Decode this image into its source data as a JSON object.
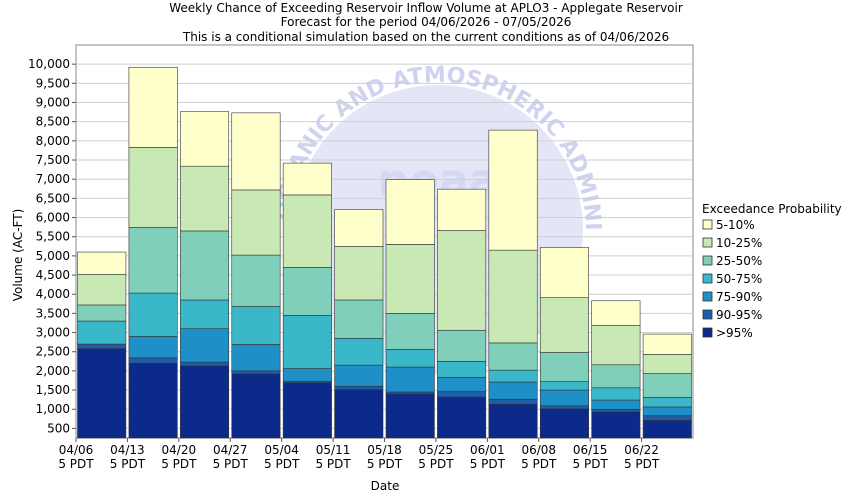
{
  "colors": {
    "background": "#ffffff",
    "plot_background": "#ffffff",
    "watermark": "#dcdff5",
    "bar_outline": "#333333",
    "bands": [
      "#0c2a8a",
      "#1c5ea9",
      "#1e8fc7",
      "#3ab7c8",
      "#7fcfbb",
      "#c8e8b4",
      "#ffffcc"
    ]
  },
  "watermark": {
    "arc_text": "OCEANIC AND ATMOSPHERIC ADMINISTRATION",
    "center_text": "noaa"
  },
  "chart_data": {
    "type": "bar",
    "stacked": true,
    "title": "Weekly Chance of Exceeding Reservoir Inflow Volume at APLO3 - Applegate Reservoir",
    "subtitle_lines": [
      "Forecast for the period 04/06/2026 - 07/05/2026",
      "This is a conditional simulation based on the current conditions as of 04/06/2026"
    ],
    "xlabel": "Date",
    "ylabel": "Volume (AC-FT)",
    "ylim": [
      250,
      10500
    ],
    "yticks": [
      500,
      1000,
      1500,
      2000,
      2500,
      3000,
      3500,
      4000,
      4500,
      5000,
      5500,
      6000,
      6500,
      7000,
      7500,
      8000,
      8500,
      9000,
      9500,
      10000
    ],
    "ytick_labels": [
      "500",
      "1,000",
      "1,500",
      "2,000",
      "2,500",
      "3,000",
      "3,500",
      "4,000",
      "4,500",
      "5,000",
      "5,500",
      "6,000",
      "6,500",
      "7,000",
      "7,500",
      "8,000",
      "8,500",
      "9,000",
      "9,500",
      "10,000"
    ],
    "xtick_labels": [
      "04/06",
      "04/13",
      "04/20",
      "04/27",
      "05/04",
      "05/11",
      "05/18",
      "05/25",
      "06/01",
      "06/08",
      "06/15",
      "06/22"
    ],
    "xtick_sublabel": "5 PDT",
    "grid": true,
    "legend": {
      "title": "Exceedance Probability",
      "placement": "right",
      "entries": [
        "5-10%",
        "10-25%",
        "25-50%",
        "50-75%",
        "75-90%",
        "90-95%",
        ">95%"
      ]
    },
    "series_order_note": "band boundaries listed bottom-to-top: >95%, 90-95%, 75-90%, 50-75%, 25-50%, 10-25%, 5-10% (cumulative tops)",
    "bars": [
      {
        "week": "04/06",
        "tops": [
          2580,
          2700,
          2700,
          3300,
          3720,
          4520,
          5100
        ]
      },
      {
        "week": "04/13",
        "tops": [
          2200,
          2340,
          2900,
          4030,
          5740,
          7830,
          9920
        ]
      },
      {
        "week": "04/20",
        "tops": [
          2130,
          2230,
          3100,
          3850,
          5650,
          7340,
          8760
        ]
      },
      {
        "week": "04/27",
        "tops": [
          1920,
          2000,
          2690,
          3680,
          5020,
          6720,
          8730
        ]
      },
      {
        "week": "05/04",
        "tops": [
          1690,
          1730,
          2060,
          3450,
          4700,
          6590,
          7420
        ]
      },
      {
        "week": "05/11",
        "tops": [
          1510,
          1600,
          2150,
          2850,
          3850,
          5250,
          6210
        ]
      },
      {
        "week": "05/18",
        "tops": [
          1400,
          1450,
          2100,
          2560,
          3500,
          5300,
          6990
        ]
      },
      {
        "week": "05/25",
        "tops": [
          1320,
          1460,
          1830,
          2250,
          3060,
          5660,
          6740
        ]
      },
      {
        "week": "06/01",
        "tops": [
          1130,
          1260,
          1710,
          2020,
          2730,
          5150,
          8280
        ]
      },
      {
        "week": "06/08",
        "tops": [
          1010,
          1090,
          1500,
          1720,
          2480,
          3910,
          5220
        ]
      },
      {
        "week": "06/15",
        "tops": [
          930,
          1000,
          1240,
          1560,
          2160,
          3190,
          3830
        ]
      },
      {
        "week": "06/22",
        "tops": [
          710,
          830,
          1060,
          1310,
          1930,
          2430,
          2960
        ]
      }
    ]
  }
}
